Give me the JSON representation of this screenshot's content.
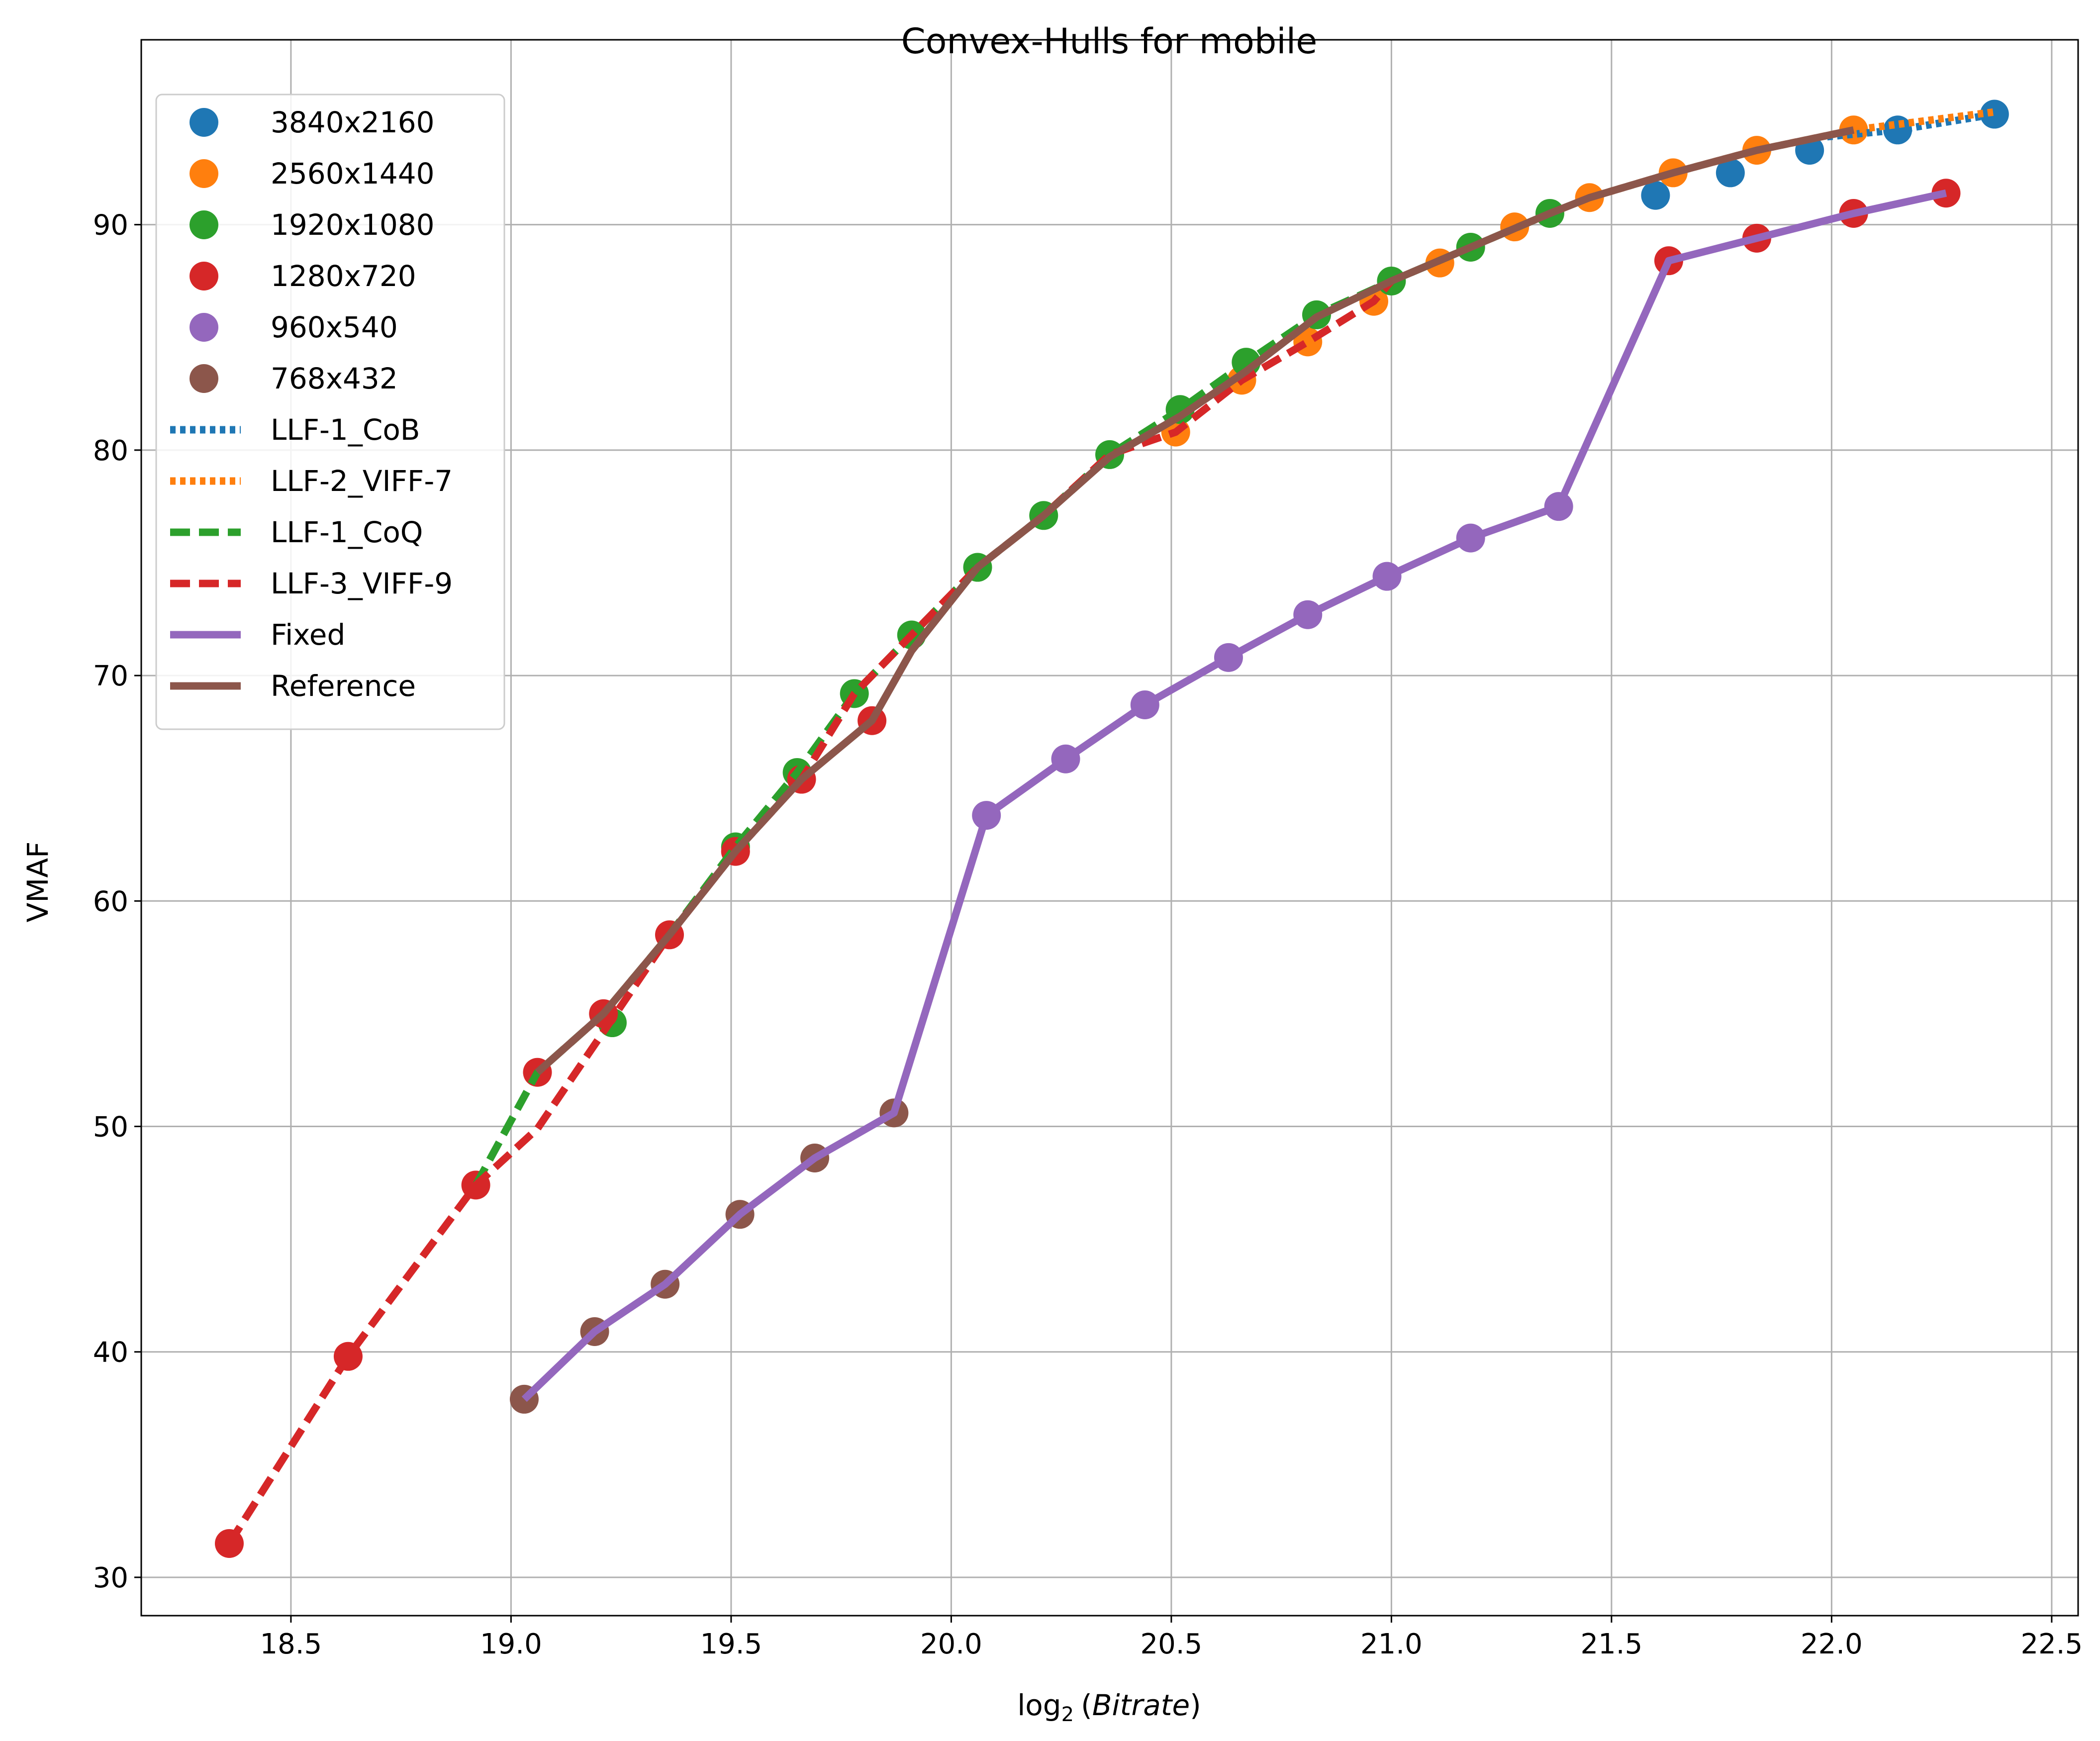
{
  "chart_data": {
    "type": "line",
    "title": "Convex-Hulls for mobile",
    "xlabel": "log",
    "xlabel_sub": "2",
    "xlabel_arg_open": "(",
    "xlabel_arg": "Bitrate",
    "xlabel_arg_close": ")",
    "ylabel": "VMAF",
    "xlim": [
      18.16,
      22.56
    ],
    "ylim": [
      28.3,
      98.2
    ],
    "xticks": [
      18.5,
      19.0,
      19.5,
      20.0,
      20.5,
      21.0,
      21.5,
      22.0,
      22.5
    ],
    "xtick_labels": [
      "18.5",
      "19.0",
      "19.5",
      "20.0",
      "20.5",
      "21.0",
      "21.5",
      "22.0",
      "22.5"
    ],
    "yticks": [
      30,
      40,
      50,
      60,
      70,
      80,
      90
    ],
    "ytick_labels": [
      "30",
      "40",
      "50",
      "60",
      "70",
      "80",
      "90"
    ],
    "grid": true,
    "legend_position": "top-left",
    "scatter_series": [
      {
        "name": "3840x2160",
        "color": "#1f77b4",
        "points": [
          [
            21.6,
            91.3
          ],
          [
            21.77,
            92.3
          ],
          [
            21.95,
            93.3
          ],
          [
            22.15,
            94.2
          ],
          [
            22.37,
            94.9
          ]
        ]
      },
      {
        "name": "2560x1440",
        "color": "#ff7f0e",
        "points": [
          [
            20.51,
            80.8
          ],
          [
            20.66,
            83.1
          ],
          [
            20.81,
            84.8
          ],
          [
            20.96,
            86.6
          ],
          [
            21.11,
            88.3
          ],
          [
            21.28,
            89.9
          ],
          [
            21.45,
            91.2
          ],
          [
            21.64,
            92.3
          ],
          [
            21.83,
            93.3
          ],
          [
            22.05,
            94.2
          ]
        ]
      },
      {
        "name": "1920x1080",
        "color": "#2ca02c",
        "points": [
          [
            19.23,
            54.6
          ],
          [
            19.51,
            62.4
          ],
          [
            19.65,
            65.7
          ],
          [
            19.78,
            69.2
          ],
          [
            19.91,
            71.8
          ],
          [
            20.06,
            74.8
          ],
          [
            20.21,
            77.1
          ],
          [
            20.36,
            79.8
          ],
          [
            20.52,
            81.8
          ],
          [
            20.67,
            83.9
          ],
          [
            20.83,
            86.0
          ],
          [
            21.0,
            87.5
          ],
          [
            21.18,
            89.0
          ],
          [
            21.36,
            90.5
          ]
        ]
      },
      {
        "name": "1280x720",
        "color": "#d62728",
        "points": [
          [
            18.36,
            31.5
          ],
          [
            18.63,
            39.8
          ],
          [
            18.92,
            47.4
          ],
          [
            19.06,
            52.4
          ],
          [
            19.21,
            55.0
          ],
          [
            19.36,
            58.5
          ],
          [
            19.51,
            62.2
          ],
          [
            19.66,
            65.4
          ],
          [
            19.82,
            68.0
          ],
          [
            21.63,
            88.4
          ],
          [
            21.83,
            89.4
          ],
          [
            22.05,
            90.5
          ],
          [
            22.26,
            91.4
          ]
        ]
      },
      {
        "name": "960x540",
        "color": "#9467bd",
        "points": [
          [
            20.08,
            63.8
          ],
          [
            20.26,
            66.3
          ],
          [
            20.44,
            68.7
          ],
          [
            20.63,
            70.8
          ],
          [
            20.81,
            72.7
          ],
          [
            20.99,
            74.4
          ],
          [
            21.18,
            76.1
          ],
          [
            21.38,
            77.5
          ]
        ]
      },
      {
        "name": "768x432",
        "color": "#8c564b",
        "points": [
          [
            19.03,
            37.9
          ],
          [
            19.19,
            40.9
          ],
          [
            19.35,
            43.0
          ],
          [
            19.52,
            46.1
          ],
          [
            19.69,
            48.6
          ],
          [
            19.87,
            50.6
          ]
        ]
      }
    ],
    "line_series": [
      {
        "name": "LLF-1_CoB",
        "color": "#1f77b4",
        "style": "dotted",
        "points": [
          [
            21.99,
            93.9
          ],
          [
            22.15,
            94.2
          ],
          [
            22.37,
            94.9
          ]
        ]
      },
      {
        "name": "LLF-2_VIFF-7",
        "color": "#ff7f0e",
        "style": "dotted",
        "points": [
          [
            21.45,
            91.2
          ],
          [
            21.64,
            92.3
          ],
          [
            21.83,
            93.3
          ],
          [
            22.05,
            94.2
          ],
          [
            22.37,
            95.0
          ]
        ]
      },
      {
        "name": "LLF-1_CoQ",
        "color": "#2ca02c",
        "style": "dashed",
        "points": [
          [
            18.92,
            47.4
          ],
          [
            19.06,
            52.4
          ],
          [
            19.21,
            55.0
          ],
          [
            19.36,
            58.5
          ],
          [
            19.51,
            62.4
          ],
          [
            19.65,
            65.7
          ],
          [
            19.78,
            69.2
          ],
          [
            19.91,
            71.8
          ],
          [
            20.06,
            74.8
          ],
          [
            20.21,
            77.1
          ],
          [
            20.36,
            79.8
          ],
          [
            20.52,
            81.8
          ],
          [
            20.67,
            83.9
          ],
          [
            20.83,
            86.0
          ],
          [
            21.0,
            87.5
          ],
          [
            21.18,
            89.0
          ],
          [
            21.36,
            90.5
          ]
        ]
      },
      {
        "name": "LLF-3_VIFF-9",
        "color": "#d62728",
        "style": "dashed",
        "points": [
          [
            18.36,
            31.5
          ],
          [
            18.63,
            39.8
          ],
          [
            18.92,
            47.4
          ],
          [
            19.06,
            49.9
          ],
          [
            19.21,
            54.2
          ],
          [
            19.36,
            58.5
          ],
          [
            19.51,
            62.2
          ],
          [
            19.66,
            65.4
          ],
          [
            19.78,
            69.2
          ],
          [
            19.91,
            71.8
          ],
          [
            20.06,
            74.8
          ],
          [
            20.21,
            77.1
          ],
          [
            20.36,
            79.8
          ],
          [
            20.51,
            80.8
          ],
          [
            20.66,
            83.1
          ],
          [
            20.81,
            84.8
          ],
          [
            20.96,
            86.6
          ],
          [
            21.0,
            87.5
          ]
        ]
      },
      {
        "name": "Fixed",
        "color": "#9467bd",
        "style": "solid",
        "points": [
          [
            19.03,
            37.9
          ],
          [
            19.19,
            40.9
          ],
          [
            19.35,
            43.0
          ],
          [
            19.52,
            46.1
          ],
          [
            19.69,
            48.6
          ],
          [
            19.87,
            50.6
          ],
          [
            20.08,
            63.8
          ],
          [
            20.26,
            66.3
          ],
          [
            20.44,
            68.7
          ],
          [
            20.63,
            70.8
          ],
          [
            20.81,
            72.7
          ],
          [
            20.99,
            74.4
          ],
          [
            21.18,
            76.1
          ],
          [
            21.38,
            77.5
          ],
          [
            21.63,
            88.4
          ],
          [
            21.83,
            89.4
          ],
          [
            22.05,
            90.5
          ],
          [
            22.26,
            91.4
          ]
        ]
      },
      {
        "name": "Reference",
        "color": "#8c564b",
        "style": "solid",
        "points": [
          [
            19.06,
            52.4
          ],
          [
            19.21,
            55.0
          ],
          [
            19.36,
            58.5
          ],
          [
            19.51,
            62.2
          ],
          [
            19.66,
            65.4
          ],
          [
            19.82,
            68.0
          ],
          [
            19.91,
            71.1
          ],
          [
            20.06,
            74.8
          ],
          [
            20.21,
            77.1
          ],
          [
            20.36,
            79.7
          ],
          [
            20.52,
            81.5
          ],
          [
            20.67,
            83.5
          ],
          [
            20.83,
            85.9
          ],
          [
            21.0,
            87.5
          ],
          [
            21.18,
            89.0
          ],
          [
            21.36,
            90.5
          ],
          [
            21.45,
            91.2
          ],
          [
            21.64,
            92.3
          ],
          [
            21.83,
            93.3
          ],
          [
            22.05,
            94.2
          ]
        ]
      }
    ]
  }
}
